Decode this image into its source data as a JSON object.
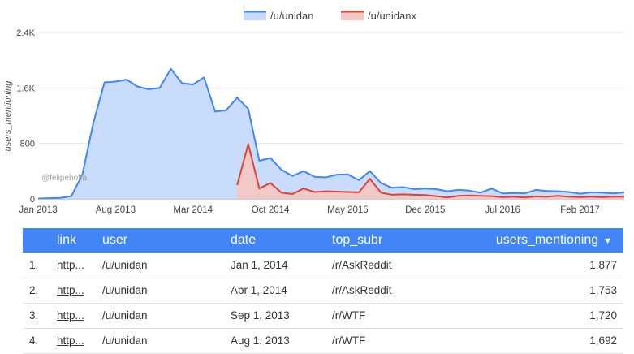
{
  "chart_data": {
    "type": "area",
    "ylabel": "users_mentioning",
    "xlabel": "",
    "ylim": [
      0,
      2400
    ],
    "yticks": [
      "0",
      "800",
      "1.6K",
      "2.4K"
    ],
    "xtick_labels": [
      "Jan 2013",
      "Aug 2013",
      "Mar 2014",
      "Oct 2014",
      "May 2015",
      "Dec 2015",
      "Jul 2016",
      "Feb 2017"
    ],
    "watermark": "@felipehoffa",
    "legend_position": "top",
    "grid": true,
    "series": [
      {
        "name": "/u/unidan",
        "color": "#4285f4",
        "fill": "#c6dafc",
        "points": [
          [
            "Jan 2013",
            5
          ],
          [
            "Feb 2013",
            10
          ],
          [
            "Mar 2013",
            15
          ],
          [
            "Apr 2013",
            40
          ],
          [
            "May 2013",
            350
          ],
          [
            "Jun 2013",
            1100
          ],
          [
            "Jul 2013",
            1680
          ],
          [
            "Aug 2013",
            1692
          ],
          [
            "Sep 2013",
            1720
          ],
          [
            "Oct 2013",
            1620
          ],
          [
            "Nov 2013",
            1580
          ],
          [
            "Dec 2013",
            1600
          ],
          [
            "Jan 2014",
            1877
          ],
          [
            "Feb 2014",
            1670
          ],
          [
            "Mar 2014",
            1650
          ],
          [
            "Apr 2014",
            1753
          ],
          [
            "May 2014",
            1260
          ],
          [
            "Jun 2014",
            1280
          ],
          [
            "Jul 2014",
            1460
          ],
          [
            "Aug 2014",
            1300
          ],
          [
            "Sep 2014",
            550
          ],
          [
            "Oct 2014",
            590
          ],
          [
            "Nov 2014",
            420
          ],
          [
            "Dec 2014",
            330
          ],
          [
            "Jan 2015",
            400
          ],
          [
            "Feb 2015",
            320
          ],
          [
            "Mar 2015",
            310
          ],
          [
            "Apr 2015",
            350
          ],
          [
            "May 2015",
            355
          ],
          [
            "Jun 2015",
            270
          ],
          [
            "Jul 2015",
            400
          ],
          [
            "Aug 2015",
            230
          ],
          [
            "Sep 2015",
            160
          ],
          [
            "Oct 2015",
            170
          ],
          [
            "Nov 2015",
            140
          ],
          [
            "Dec 2015",
            150
          ],
          [
            "Jan 2016",
            140
          ],
          [
            "Feb 2016",
            110
          ],
          [
            "Mar 2016",
            130
          ],
          [
            "Apr 2016",
            120
          ],
          [
            "May 2016",
            90
          ],
          [
            "Jun 2016",
            150
          ],
          [
            "Jul 2016",
            80
          ],
          [
            "Aug 2016",
            85
          ],
          [
            "Sep 2016",
            80
          ],
          [
            "Oct 2016",
            130
          ],
          [
            "Nov 2016",
            115
          ],
          [
            "Dec 2016",
            110
          ],
          [
            "Jan 2017",
            100
          ],
          [
            "Feb 2017",
            75
          ],
          [
            "Mar 2017",
            95
          ],
          [
            "Apr 2017",
            90
          ],
          [
            "May 2017",
            80
          ],
          [
            "Jun 2017",
            95
          ]
        ]
      },
      {
        "name": "/u/unidanx",
        "color": "#db4437",
        "fill": "#f4c7c3",
        "points": [
          [
            "Jul 2014",
            200
          ],
          [
            "Aug 2014",
            790
          ],
          [
            "Sep 2014",
            150
          ],
          [
            "Oct 2014",
            230
          ],
          [
            "Nov 2014",
            90
          ],
          [
            "Dec 2014",
            70
          ],
          [
            "Jan 2015",
            150
          ],
          [
            "Feb 2015",
            100
          ],
          [
            "Mar 2015",
            110
          ],
          [
            "Apr 2015",
            105
          ],
          [
            "May 2015",
            100
          ],
          [
            "Jun 2015",
            95
          ],
          [
            "Jul 2015",
            290
          ],
          [
            "Aug 2015",
            90
          ],
          [
            "Sep 2015",
            60
          ],
          [
            "Oct 2015",
            65
          ],
          [
            "Nov 2015",
            60
          ],
          [
            "Dec 2015",
            55
          ],
          [
            "Jan 2016",
            40
          ],
          [
            "Feb 2016",
            20
          ],
          [
            "Mar 2016",
            45
          ],
          [
            "Apr 2016",
            50
          ],
          [
            "May 2016",
            45
          ],
          [
            "Jun 2016",
            40
          ],
          [
            "Jul 2016",
            25
          ],
          [
            "Aug 2016",
            30
          ],
          [
            "Sep 2016",
            20
          ],
          [
            "Oct 2016",
            35
          ],
          [
            "Nov 2016",
            30
          ],
          [
            "Dec 2016",
            45
          ],
          [
            "Jan 2017",
            30
          ],
          [
            "Feb 2017",
            25
          ],
          [
            "Mar 2017",
            30
          ],
          [
            "Apr 2017",
            25
          ],
          [
            "May 2017",
            30
          ],
          [
            "Jun 2017",
            30
          ]
        ]
      }
    ]
  },
  "table": {
    "columns": {
      "link": "link",
      "user": "user",
      "date": "date",
      "top_subr": "top_subr",
      "users_mentioning": "users_mentioning"
    },
    "sort_icon": "▼",
    "header_color": "#4285f4",
    "rows": [
      {
        "index": "1.",
        "link": "http...",
        "user": "/u/unidan",
        "date": "Jan 1, 2014",
        "top_subr": "/r/AskReddit",
        "users_mentioning": "1,877"
      },
      {
        "index": "2.",
        "link": "http...",
        "user": "/u/unidan",
        "date": "Apr 1, 2014",
        "top_subr": "/r/AskReddit",
        "users_mentioning": "1,753"
      },
      {
        "index": "3.",
        "link": "http...",
        "user": "/u/unidan",
        "date": "Sep 1, 2013",
        "top_subr": "/r/WTF",
        "users_mentioning": "1,720"
      },
      {
        "index": "4.",
        "link": "http...",
        "user": "/u/unidan",
        "date": "Aug 1, 2013",
        "top_subr": "/r/WTF",
        "users_mentioning": "1,692"
      }
    ]
  }
}
